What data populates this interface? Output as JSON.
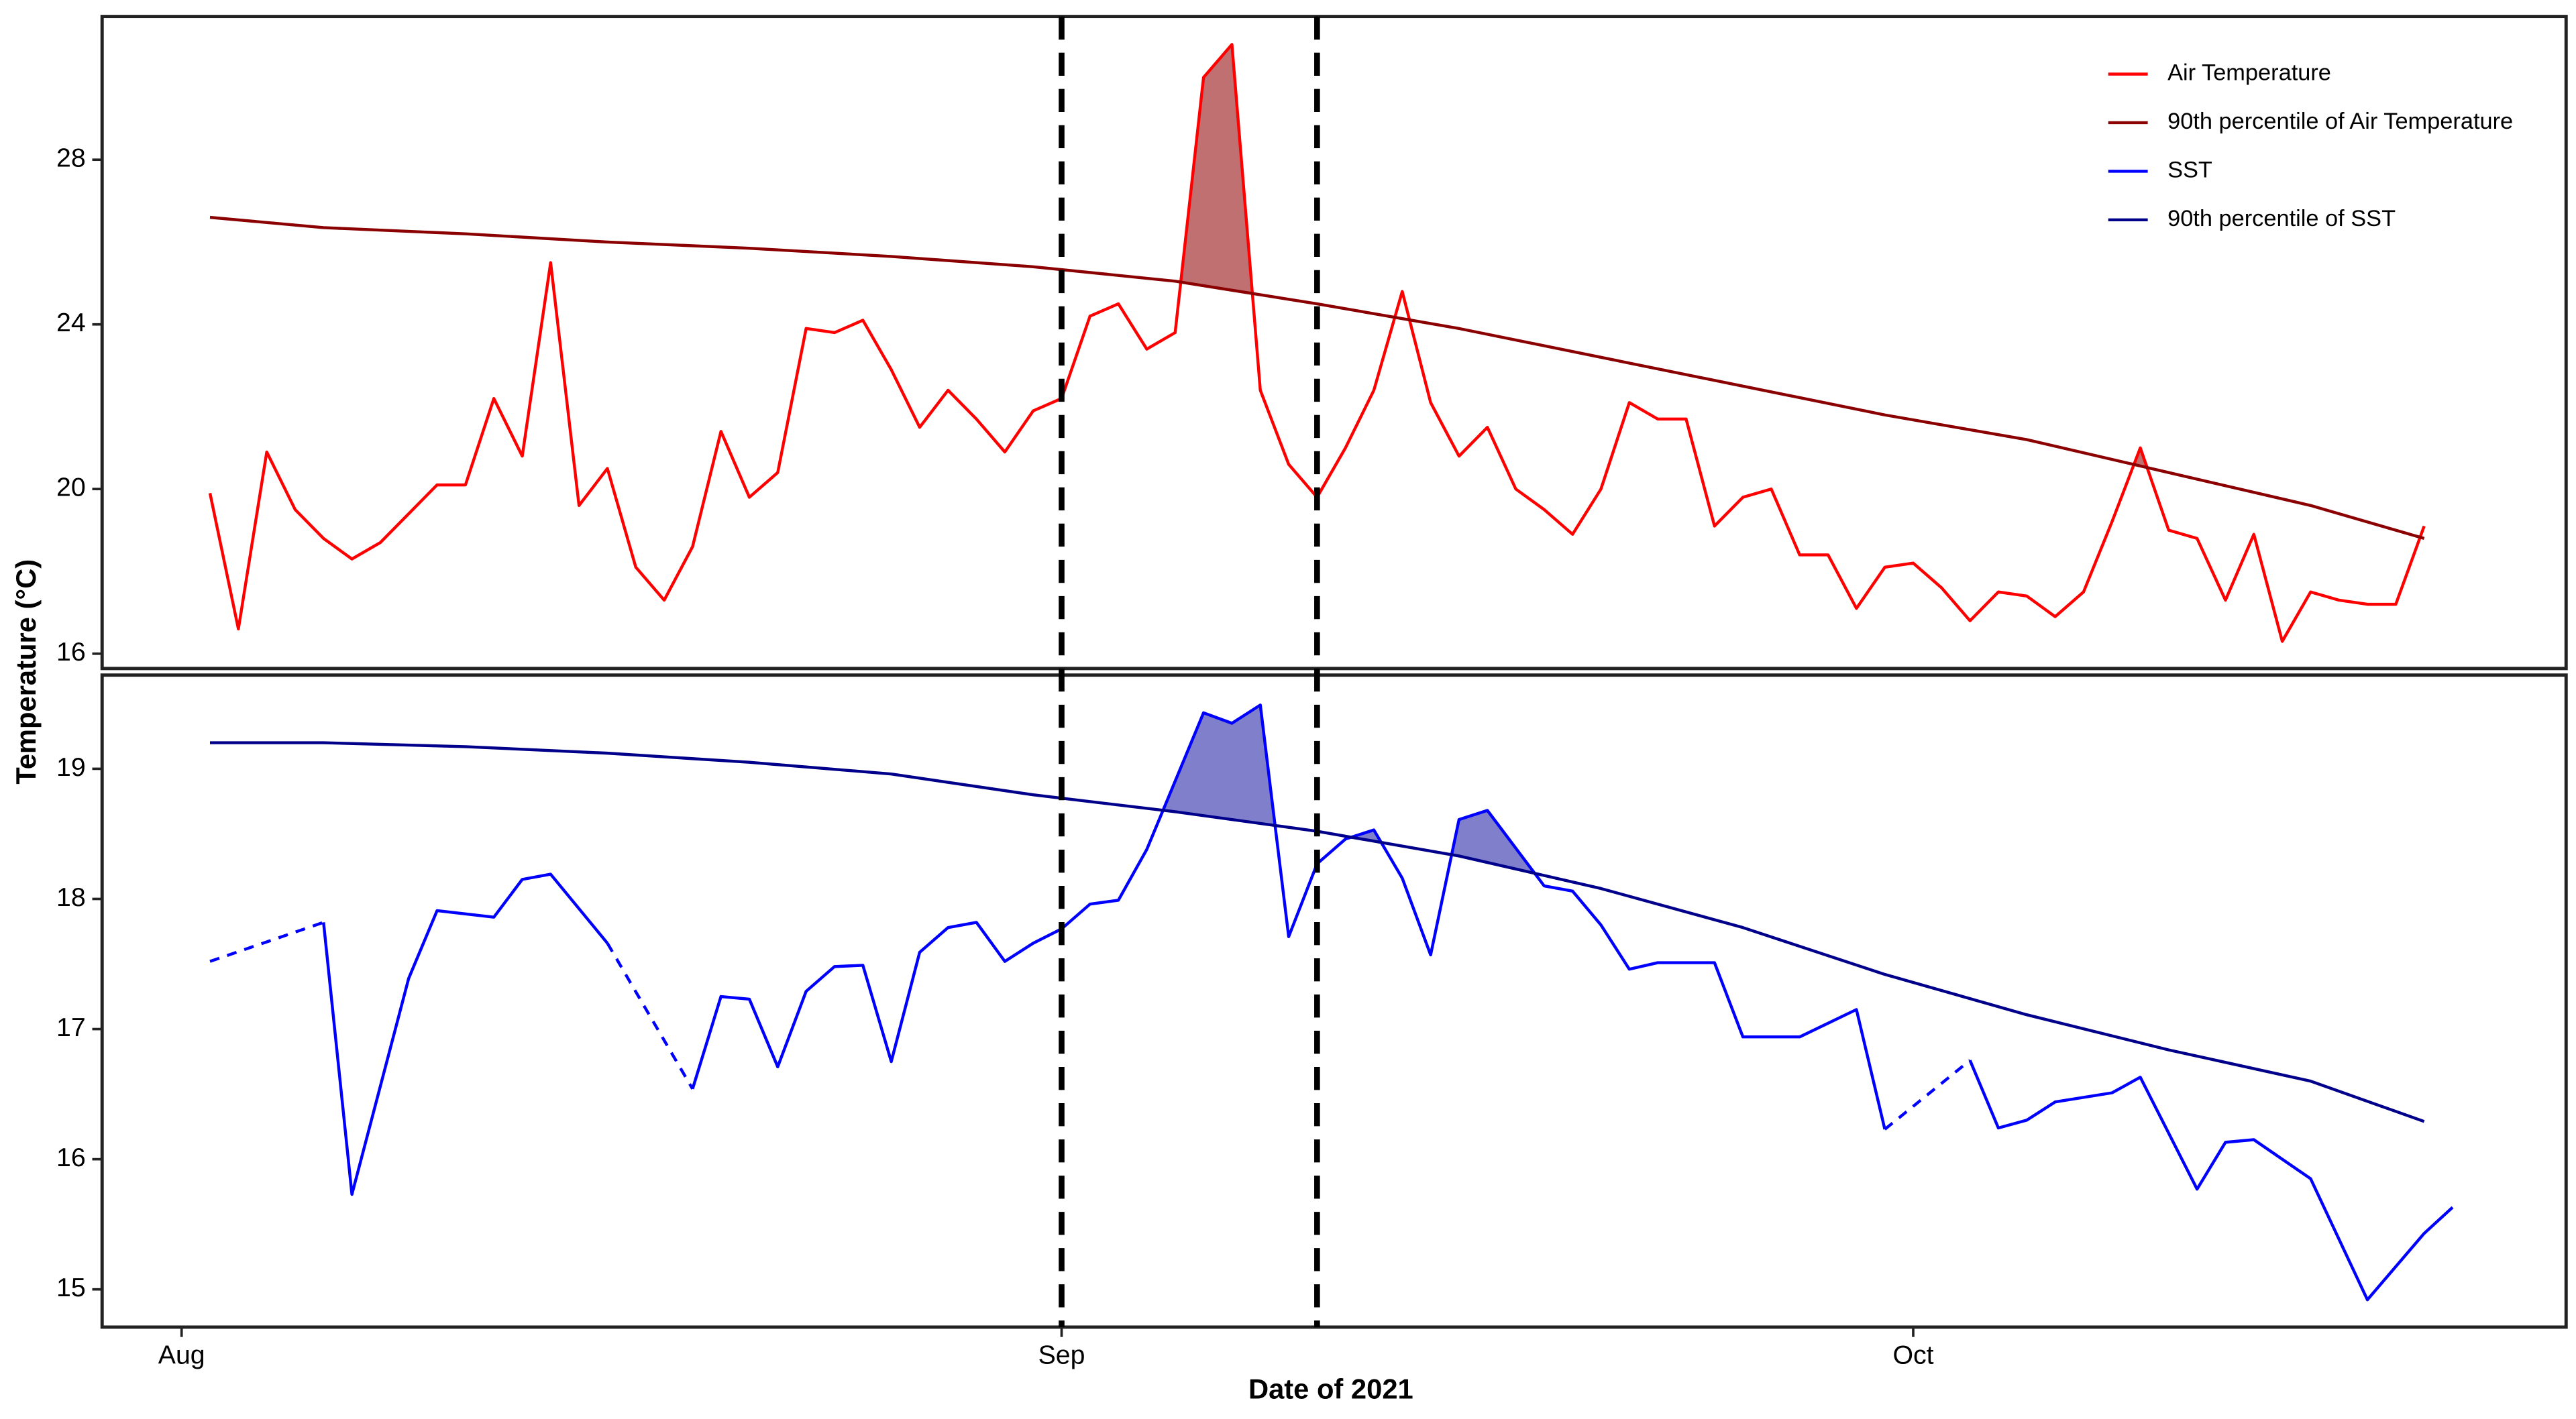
{
  "chart_data": [
    {
      "type": "line",
      "ylabel": "Temperature (°C)",
      "legend": "top-right",
      "vlines": [
        31,
        40
      ],
      "xlim": [
        -2.8,
        84
      ],
      "ylim": [
        15.64,
        31.48
      ],
      "yticks": [
        16,
        20,
        24,
        28
      ],
      "fill_ranges": [
        [
          34,
          39
        ],
        [
          68,
          70
        ]
      ],
      "fill_color": "#c07070",
      "series": [
        {
          "name": "Air Temperature",
          "color": "#ff0000",
          "x": [
            1,
            2,
            3,
            4,
            5,
            6,
            7,
            8,
            9,
            10,
            11,
            12,
            13,
            14,
            15,
            16,
            17,
            18,
            19,
            20,
            21,
            22,
            23,
            24,
            25,
            26,
            27,
            28,
            29,
            30,
            31,
            32,
            33,
            34,
            35,
            36,
            37,
            38,
            39,
            40,
            41,
            42,
            43,
            44,
            45,
            46,
            47,
            48,
            49,
            50,
            51,
            52,
            53,
            54,
            55,
            56,
            57,
            58,
            59,
            60,
            61,
            62,
            63,
            64,
            65,
            66,
            67,
            68,
            69,
            70,
            71,
            72,
            73,
            74,
            75,
            76,
            77,
            78,
            79
          ],
          "values": [
            19.9,
            16.6,
            20.9,
            19.5,
            18.8,
            18.3,
            18.7,
            19.4,
            20.1,
            20.1,
            22.2,
            20.8,
            25.5,
            19.6,
            20.5,
            18.1,
            17.3,
            18.6,
            21.4,
            19.8,
            20.4,
            23.9,
            23.8,
            24.1,
            22.9,
            21.5,
            22.4,
            21.7,
            20.9,
            21.9,
            22.2,
            24.2,
            24.5,
            23.4,
            23.8,
            30.0,
            30.8,
            22.4,
            20.6,
            19.8,
            21.0,
            22.4,
            24.8,
            22.1,
            20.8,
            21.5,
            20.0,
            19.5,
            18.9,
            20.0,
            22.1,
            21.7,
            21.7,
            19.1,
            19.8,
            20.0,
            18.4,
            18.4,
            17.1,
            18.1,
            18.2,
            17.6,
            16.8,
            17.5,
            17.4,
            16.9,
            17.5,
            19.2,
            21.0,
            19.0,
            18.8,
            17.3,
            18.9,
            16.3,
            17.5,
            17.3,
            17.2,
            17.2,
            19.1
          ]
        },
        {
          "name": "90th percentile of Air Temperature",
          "color": "#8b0000",
          "threshold": true,
          "x": [
            1,
            5,
            10,
            15,
            20,
            25,
            30,
            35,
            40,
            45,
            50,
            55,
            60,
            65,
            70,
            75,
            79
          ],
          "values": [
            26.6,
            26.35,
            26.2,
            26.0,
            25.85,
            25.65,
            25.4,
            25.05,
            24.5,
            23.9,
            23.2,
            22.5,
            21.8,
            21.2,
            20.4,
            19.6,
            18.8
          ]
        }
      ]
    },
    {
      "type": "line",
      "xlabel": "Date of 2021",
      "gap_line": "dashed",
      "xlim": [
        -2.8,
        84
      ],
      "xticks": [
        {
          "value": 0,
          "label": "Aug"
        },
        {
          "value": 31,
          "label": "Sep"
        },
        {
          "value": 61,
          "label": "Oct"
        }
      ],
      "ylim": [
        14.71,
        19.72
      ],
      "yticks": [
        15,
        16,
        17,
        18,
        19
      ],
      "fill_ranges": [
        [
          33,
          39
        ],
        [
          40,
          43
        ],
        [
          44,
          48
        ]
      ],
      "fill_color": "#7f7fcc",
      "series": [
        {
          "name": "SST",
          "color": "#0000ff",
          "x": [
            1,
            2,
            3,
            4,
            5,
            6,
            8,
            9,
            11,
            12,
            13,
            15,
            16,
            17,
            18,
            19,
            20,
            21,
            22,
            23,
            24,
            25,
            26,
            27,
            28,
            29,
            30,
            31,
            32,
            33,
            34,
            36,
            37,
            38,
            39,
            40,
            41,
            42,
            43,
            44,
            45,
            46,
            48,
            49,
            50,
            51,
            52,
            54,
            55,
            57,
            59,
            60,
            61,
            62,
            63,
            64,
            65,
            66,
            68,
            69,
            71,
            72,
            73,
            75,
            77,
            79,
            80
          ],
          "values": [
            17.52,
            null,
            null,
            null,
            17.82,
            15.73,
            17.39,
            17.91,
            17.86,
            18.15,
            18.19,
            17.66,
            null,
            null,
            16.54,
            17.25,
            17.23,
            16.71,
            17.29,
            17.48,
            17.49,
            16.75,
            17.59,
            17.78,
            17.82,
            17.52,
            17.66,
            17.77,
            17.96,
            17.99,
            18.38,
            19.43,
            19.35,
            19.49,
            17.71,
            18.27,
            18.46,
            18.53,
            18.16,
            17.57,
            18.61,
            18.68,
            18.1,
            18.06,
            17.8,
            17.46,
            17.51,
            17.51,
            16.94,
            16.94,
            17.15,
            16.23,
            null,
            null,
            16.76,
            16.24,
            16.3,
            16.44,
            16.51,
            16.63,
            15.77,
            16.13,
            16.15,
            15.85,
            14.92,
            15.43,
            15.63
          ]
        },
        {
          "name": "90th percentile of SST",
          "color": "#00008b",
          "threshold": true,
          "x": [
            1,
            5,
            10,
            15,
            20,
            25,
            30,
            35,
            40,
            45,
            50,
            55,
            60,
            65,
            70,
            75,
            79
          ],
          "values": [
            19.2,
            19.2,
            19.17,
            19.12,
            19.05,
            18.96,
            18.8,
            18.67,
            18.52,
            18.33,
            18.08,
            17.78,
            17.42,
            17.11,
            16.84,
            16.6,
            16.29
          ]
        }
      ]
    }
  ]
}
